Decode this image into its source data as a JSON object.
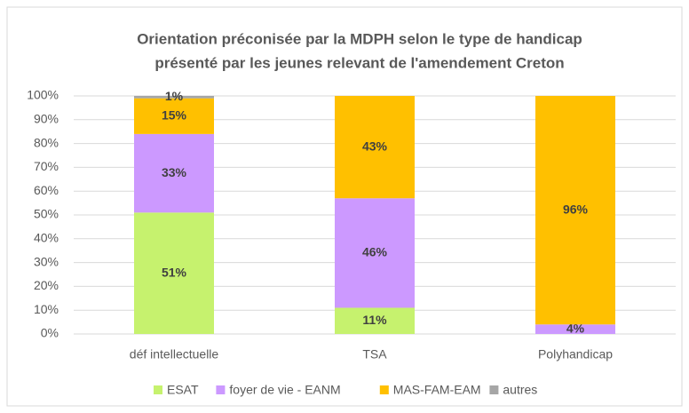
{
  "chart_data": {
    "type": "stacked_bar",
    "title": [
      "Orientation préconisée par la MDPH selon le type de handicap",
      "présenté par les jeunes relevant de l'amendement Creton"
    ],
    "categories": [
      "déf intellectuelle",
      "TSA",
      "Polyhandicap"
    ],
    "series": [
      {
        "name": "ESAT",
        "color": "#c6f26e",
        "values": [
          51,
          11,
          0
        ],
        "value_labels": [
          "51%",
          "11%",
          null
        ]
      },
      {
        "name": "foyer de vie - EANM",
        "color": "#cc99ff",
        "values": [
          33,
          46,
          4
        ],
        "value_labels": [
          "33%",
          "46%",
          "4%"
        ]
      },
      {
        "name": "MAS-FAM-EAM",
        "color": "#ffc000",
        "values": [
          15,
          43,
          96
        ],
        "value_labels": [
          "15%",
          "43%",
          "96%"
        ]
      },
      {
        "name": "autres",
        "color": "#a6a6a6",
        "values": [
          1,
          0,
          0
        ],
        "value_labels": [
          "1%",
          null,
          null
        ]
      }
    ],
    "ylim": [
      0,
      100
    ],
    "yticks": [
      {
        "value": 0,
        "label": "0%"
      },
      {
        "value": 10,
        "label": "10%"
      },
      {
        "value": 20,
        "label": "20%"
      },
      {
        "value": 30,
        "label": "30%"
      },
      {
        "value": 40,
        "label": "40%"
      },
      {
        "value": 50,
        "label": "50%"
      },
      {
        "value": 60,
        "label": "60%"
      },
      {
        "value": 70,
        "label": "70%"
      },
      {
        "value": 80,
        "label": "80%"
      },
      {
        "value": 90,
        "label": "90%"
      },
      {
        "value": 100,
        "label": "100%"
      }
    ],
    "grid": true,
    "legend": "bottom"
  }
}
